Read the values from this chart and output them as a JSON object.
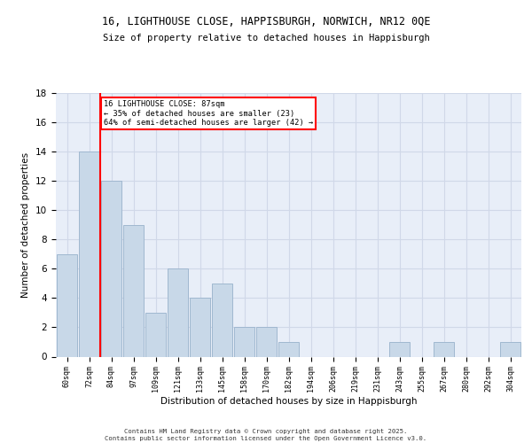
{
  "title1": "16, LIGHTHOUSE CLOSE, HAPPISBURGH, NORWICH, NR12 0QE",
  "title2": "Size of property relative to detached houses in Happisburgh",
  "xlabel": "Distribution of detached houses by size in Happisburgh",
  "ylabel": "Number of detached properties",
  "categories": [
    "60sqm",
    "72sqm",
    "84sqm",
    "97sqm",
    "109sqm",
    "121sqm",
    "133sqm",
    "145sqm",
    "158sqm",
    "170sqm",
    "182sqm",
    "194sqm",
    "206sqm",
    "219sqm",
    "231sqm",
    "243sqm",
    "255sqm",
    "267sqm",
    "280sqm",
    "292sqm",
    "304sqm"
  ],
  "values": [
    7,
    14,
    12,
    9,
    3,
    6,
    4,
    5,
    2,
    2,
    1,
    0,
    0,
    0,
    0,
    1,
    0,
    1,
    0,
    0,
    1
  ],
  "bar_color": "#c8d8e8",
  "bar_edge_color": "#a0b8d0",
  "grid_color": "#d0d8e8",
  "bg_color": "#e8eef8",
  "vline_x_bar_index": 2,
  "vline_color": "red",
  "annotation_text": "16 LIGHTHOUSE CLOSE: 87sqm\n← 35% of detached houses are smaller (23)\n64% of semi-detached houses are larger (42) →",
  "annotation_box_color": "white",
  "annotation_box_edge": "red",
  "ylim": [
    0,
    18
  ],
  "yticks": [
    0,
    2,
    4,
    6,
    8,
    10,
    12,
    14,
    16,
    18
  ],
  "footnote": "Contains HM Land Registry data © Crown copyright and database right 2025.\nContains public sector information licensed under the Open Government Licence v3.0."
}
